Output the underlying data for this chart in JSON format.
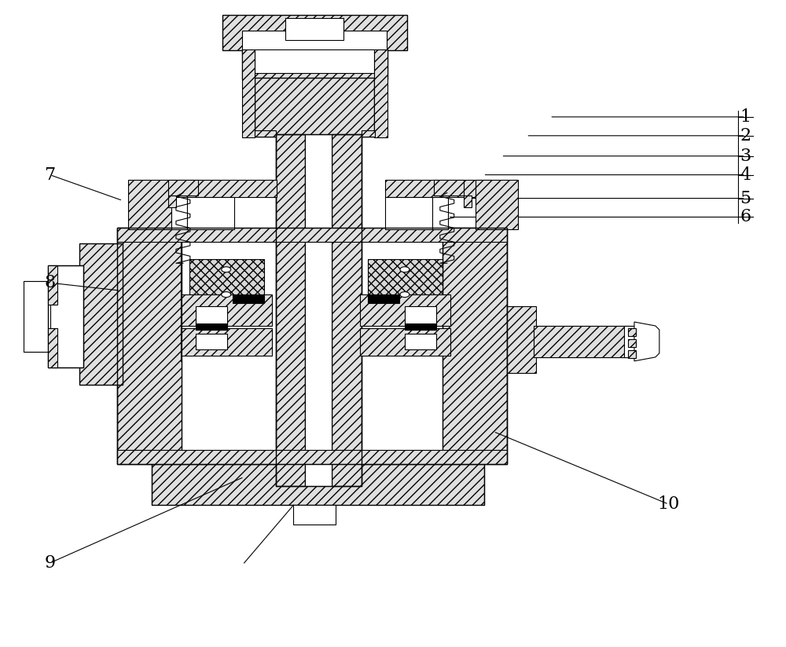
{
  "fig_width": 10.0,
  "fig_height": 8.24,
  "dpi": 100,
  "background_color": "#ffffff",
  "line_color": "#000000",
  "label_data": [
    [
      "1",
      950,
      148,
      700,
      148
    ],
    [
      "2",
      950,
      172,
      670,
      172
    ],
    [
      "3",
      950,
      198,
      638,
      198
    ],
    [
      "4",
      950,
      222,
      615,
      222
    ],
    [
      "5",
      950,
      252,
      595,
      252
    ],
    [
      "6",
      950,
      276,
      570,
      276
    ],
    [
      "7",
      62,
      222,
      155,
      255
    ],
    [
      "8",
      62,
      360,
      152,
      370
    ],
    [
      "9",
      62,
      718,
      310,
      608
    ],
    [
      "10",
      852,
      643,
      628,
      550
    ]
  ]
}
